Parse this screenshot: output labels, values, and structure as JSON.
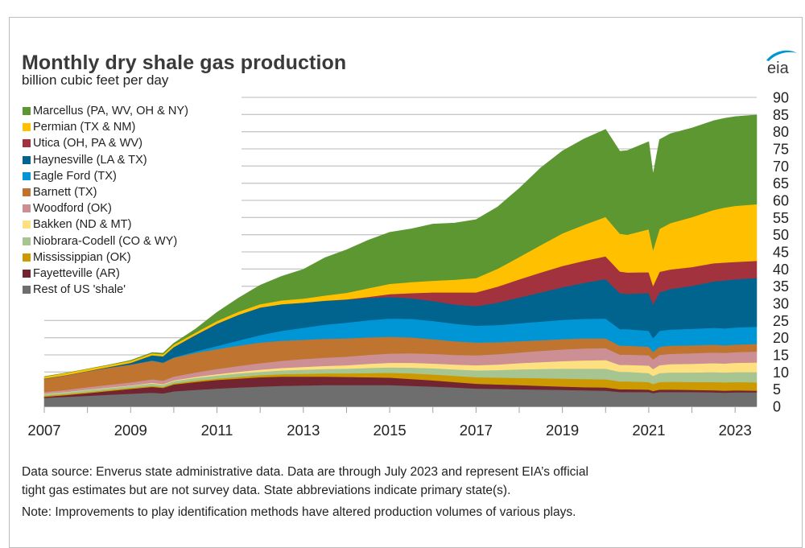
{
  "chart_data": {
    "type": "area",
    "stacked": true,
    "title": "Monthly dry shale gas production",
    "subtitle": "billion cubic feet per day",
    "ylabel": "billion cubic feet per day",
    "xlabel": "",
    "ylim": [
      0,
      90
    ],
    "yticks": [
      0,
      5,
      10,
      15,
      20,
      25,
      30,
      35,
      40,
      45,
      50,
      55,
      60,
      65,
      70,
      75,
      80,
      85,
      90
    ],
    "xlim": [
      2007,
      2023.5
    ],
    "xticks": [
      2007,
      2009,
      2011,
      2013,
      2015,
      2017,
      2019,
      2021,
      2023
    ],
    "grid": true,
    "y_axis_side": "right",
    "legend_position": "top-left",
    "x": [
      2007.0,
      2007.5,
      2008.0,
      2008.5,
      2009.0,
      2009.5,
      2009.75,
      2010.0,
      2010.5,
      2011.0,
      2011.5,
      2012.0,
      2012.5,
      2013.0,
      2013.5,
      2014.0,
      2014.5,
      2015.0,
      2015.5,
      2016.0,
      2016.5,
      2017.0,
      2017.5,
      2018.0,
      2018.5,
      2019.0,
      2019.5,
      2020.0,
      2020.33,
      2020.5,
      2021.0,
      2021.1,
      2021.25,
      2021.5,
      2022.0,
      2022.5,
      2022.75,
      2023.0,
      2023.5
    ],
    "series": [
      {
        "name": "Rest of US 'shale'",
        "color": "#6e6e6e",
        "values": [
          2.5,
          2.8,
          3.1,
          3.4,
          3.7,
          4.0,
          3.8,
          4.4,
          4.8,
          5.2,
          5.5,
          5.8,
          6.0,
          6.1,
          6.2,
          6.2,
          6.2,
          6.2,
          6.0,
          5.8,
          5.5,
          5.2,
          5.1,
          5.0,
          4.9,
          4.8,
          4.7,
          4.6,
          4.2,
          4.2,
          4.2,
          3.9,
          4.2,
          4.2,
          4.2,
          4.1,
          4.0,
          4.1,
          4.1
        ]
      },
      {
        "name": "Fayetteville (AR)",
        "color": "#722530",
        "values": [
          0.3,
          0.5,
          0.8,
          1.1,
          1.4,
          1.7,
          1.6,
          2.0,
          2.3,
          2.5,
          2.6,
          2.7,
          2.7,
          2.6,
          2.5,
          2.4,
          2.3,
          2.2,
          2.0,
          1.8,
          1.6,
          1.4,
          1.3,
          1.2,
          1.1,
          1.0,
          0.9,
          0.9,
          0.8,
          0.8,
          0.7,
          0.6,
          0.7,
          0.7,
          0.6,
          0.6,
          0.6,
          0.6,
          0.5
        ]
      },
      {
        "name": "Mississippian (OK)",
        "color": "#cc9900",
        "values": [
          0.3,
          0.3,
          0.3,
          0.3,
          0.3,
          0.3,
          0.3,
          0.3,
          0.4,
          0.4,
          0.5,
          0.6,
          0.7,
          0.8,
          0.9,
          1.0,
          1.2,
          1.4,
          1.6,
          1.7,
          1.8,
          1.9,
          2.0,
          2.1,
          2.2,
          2.3,
          2.4,
          2.4,
          2.3,
          2.3,
          2.2,
          2.0,
          2.2,
          2.3,
          2.3,
          2.4,
          2.4,
          2.4,
          2.4
        ]
      },
      {
        "name": "Niobrara-Codell (CO & WY)",
        "color": "#a6c591",
        "values": [
          0.5,
          0.5,
          0.6,
          0.6,
          0.6,
          0.7,
          0.6,
          0.7,
          0.8,
          0.9,
          1.0,
          1.0,
          1.1,
          1.2,
          1.3,
          1.4,
          1.5,
          1.6,
          1.7,
          1.8,
          1.9,
          2.0,
          2.2,
          2.5,
          2.7,
          2.9,
          3.0,
          3.1,
          2.8,
          2.8,
          2.6,
          2.4,
          2.6,
          2.7,
          2.8,
          2.9,
          2.9,
          2.9,
          3.0
        ]
      },
      {
        "name": "Bakken (ND & MT)",
        "color": "#ffe080",
        "values": [
          0.1,
          0.1,
          0.1,
          0.1,
          0.1,
          0.2,
          0.2,
          0.2,
          0.3,
          0.4,
          0.5,
          0.6,
          0.7,
          0.8,
          0.9,
          1.0,
          1.2,
          1.3,
          1.4,
          1.4,
          1.4,
          1.5,
          1.6,
          1.8,
          2.0,
          2.2,
          2.4,
          2.5,
          2.0,
          2.0,
          2.2,
          2.0,
          2.3,
          2.4,
          2.5,
          2.6,
          2.6,
          2.7,
          2.8
        ]
      },
      {
        "name": "Woodford (OK)",
        "color": "#cc8f93",
        "values": [
          0.5,
          0.6,
          0.7,
          0.8,
          0.9,
          1.0,
          1.0,
          1.1,
          1.3,
          1.5,
          1.7,
          1.9,
          2.1,
          2.3,
          2.4,
          2.5,
          2.6,
          2.7,
          2.8,
          2.8,
          2.8,
          2.9,
          3.0,
          3.1,
          3.3,
          3.4,
          3.5,
          3.5,
          3.0,
          3.0,
          3.0,
          2.8,
          3.0,
          3.0,
          3.1,
          3.1,
          3.1,
          3.1,
          3.2
        ]
      },
      {
        "name": "Barnett (TX)",
        "color": "#bf7430",
        "values": [
          3.8,
          4.2,
          4.6,
          5.0,
          5.2,
          5.4,
          5.2,
          5.5,
          5.7,
          5.8,
          5.9,
          6.0,
          5.8,
          5.6,
          5.5,
          5.3,
          5.1,
          4.9,
          4.6,
          4.3,
          4.0,
          3.7,
          3.5,
          3.3,
          3.1,
          3.0,
          2.9,
          2.8,
          2.6,
          2.6,
          2.5,
          2.2,
          2.4,
          2.4,
          2.3,
          2.3,
          2.2,
          2.2,
          2.2
        ]
      },
      {
        "name": "Eagle Ford (TX)",
        "color": "#0096d6",
        "values": [
          0.0,
          0.0,
          0.0,
          0.0,
          0.0,
          0.1,
          0.1,
          0.1,
          0.4,
          0.9,
          1.5,
          2.2,
          2.9,
          3.5,
          4.1,
          4.6,
          5.0,
          5.3,
          5.4,
          5.3,
          5.1,
          4.9,
          5.0,
          5.2,
          5.4,
          5.6,
          5.7,
          5.8,
          4.8,
          4.8,
          4.6,
          4.0,
          4.6,
          4.7,
          4.8,
          4.9,
          4.9,
          5.0,
          5.0
        ]
      },
      {
        "name": "Haynesville (LA & TX)",
        "color": "#00648f",
        "values": [
          0.1,
          0.1,
          0.1,
          0.2,
          0.5,
          1.5,
          1.8,
          3.0,
          4.8,
          6.5,
          7.5,
          8.0,
          7.8,
          7.3,
          7.0,
          6.7,
          6.5,
          6.3,
          6.0,
          5.8,
          5.6,
          5.7,
          6.5,
          7.5,
          8.5,
          9.5,
          10.5,
          11.5,
          10.5,
          10.3,
          11.0,
          9.8,
          11.2,
          11.8,
          12.5,
          13.5,
          14.0,
          14.0,
          14.2
        ]
      },
      {
        "name": "Utica (OH, PA & WV)",
        "color": "#a3323f",
        "values": [
          0.0,
          0.0,
          0.0,
          0.0,
          0.0,
          0.0,
          0.0,
          0.0,
          0.0,
          0.0,
          0.0,
          0.0,
          0.0,
          0.0,
          0.0,
          0.1,
          0.3,
          0.8,
          1.5,
          2.5,
          3.5,
          4.0,
          4.7,
          5.3,
          5.8,
          6.2,
          6.4,
          6.6,
          6.3,
          6.2,
          6.1,
          5.4,
          6.0,
          5.7,
          5.5,
          5.3,
          5.2,
          5.1,
          5.0
        ]
      },
      {
        "name": "Permian (TX & NM)",
        "color": "#ffc000",
        "values": [
          0.6,
          0.6,
          0.6,
          0.6,
          0.6,
          0.6,
          0.6,
          0.7,
          0.7,
          0.8,
          0.9,
          1.0,
          1.1,
          1.2,
          1.5,
          1.9,
          2.5,
          3.0,
          3.2,
          3.4,
          3.7,
          4.2,
          5.2,
          6.5,
          8.0,
          9.5,
          10.5,
          11.5,
          11.0,
          11.0,
          12.5,
          10.5,
          12.5,
          13.5,
          14.5,
          15.5,
          16.0,
          16.3,
          16.5
        ]
      },
      {
        "name": "Marcellus (PA, WV, OH & NY)",
        "color": "#5d9732",
        "values": [
          0.0,
          0.0,
          0.0,
          0.0,
          0.1,
          0.2,
          0.3,
          0.4,
          1.0,
          2.5,
          4.0,
          5.5,
          7.0,
          8.5,
          11.0,
          12.5,
          14.0,
          15.0,
          15.5,
          16.5,
          16.5,
          17.0,
          18.0,
          20.0,
          22.5,
          24.0,
          25.0,
          25.5,
          24.0,
          24.5,
          25.5,
          22.0,
          26.0,
          26.0,
          26.0,
          26.0,
          26.0,
          26.0,
          26.0
        ]
      }
    ]
  },
  "header": {
    "title": "Monthly dry shale gas production",
    "subtitle": "billion cubic feet per day",
    "logo_text": "eia"
  },
  "legend": [
    {
      "label": "Marcellus (PA, WV, OH & NY)",
      "color": "#5d9732"
    },
    {
      "label": "Permian (TX & NM)",
      "color": "#ffc000"
    },
    {
      "label": "Utica (OH, PA & WV)",
      "color": "#a3323f"
    },
    {
      "label": "Haynesville (LA & TX)",
      "color": "#00648f"
    },
    {
      "label": "Eagle Ford (TX)",
      "color": "#0096d6"
    },
    {
      "label": "Barnett (TX)",
      "color": "#bf7430"
    },
    {
      "label": "Woodford (OK)",
      "color": "#cc8f93"
    },
    {
      "label": "Bakken (ND & MT)",
      "color": "#ffe080"
    },
    {
      "label": "Niobrara-Codell (CO & WY)",
      "color": "#a6c591"
    },
    {
      "label": "Mississippian (OK)",
      "color": "#cc9900"
    },
    {
      "label": "Fayetteville (AR)",
      "color": "#722530"
    },
    {
      "label": "Rest of US 'shale'",
      "color": "#6e6e6e"
    }
  ],
  "footnotes": {
    "source_line1": "Data source: Enverus state administrative data. Data are through July 2023 and represent EIA’s official",
    "source_line2": "tight gas estimates but are not survey data. State abbreviations indicate primary state(s).",
    "note": "Note: Improvements to play identification methods have altered production volumes of various plays."
  },
  "colors": {
    "gridline": "#c8c8c8",
    "axis": "#a0a0a0",
    "eia_blue": "#0096d6",
    "text": "#222222"
  }
}
